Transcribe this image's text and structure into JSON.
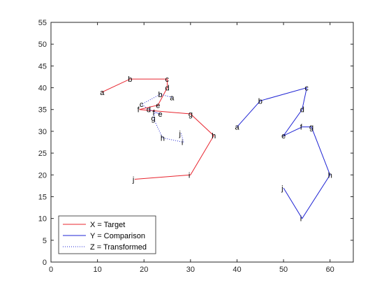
{
  "chart_data": {
    "type": "line",
    "xlim": [
      0,
      65
    ],
    "ylim": [
      0,
      55
    ],
    "xticks": [
      0,
      10,
      20,
      30,
      40,
      50,
      60
    ],
    "yticks": [
      0,
      5,
      10,
      15,
      20,
      25,
      30,
      35,
      40,
      45,
      50,
      55
    ],
    "grid": false,
    "legend_position": "bottom-left",
    "series": [
      {
        "name": "X = Target",
        "color": "#e8242e",
        "line_style": "solid",
        "points": [
          {
            "label": "a",
            "x": 11,
            "y": 39
          },
          {
            "label": "b",
            "x": 17,
            "y": 42
          },
          {
            "label": "c",
            "x": 25,
            "y": 42
          },
          {
            "label": "d",
            "x": 25,
            "y": 40
          },
          {
            "label": "e",
            "x": 23,
            "y": 36
          },
          {
            "label": "f",
            "x": 19,
            "y": 35
          },
          {
            "label": "g",
            "x": 30,
            "y": 34
          },
          {
            "label": "h",
            "x": 35,
            "y": 29
          },
          {
            "label": "i",
            "x": 30,
            "y": 20
          },
          {
            "label": "j",
            "x": 18,
            "y": 19
          }
        ]
      },
      {
        "name": "Y = Comparison",
        "color": "#1f24d4",
        "line_style": "solid",
        "points": [
          {
            "label": "a",
            "x": 40,
            "y": 31
          },
          {
            "label": "b",
            "x": 45,
            "y": 37
          },
          {
            "label": "c",
            "x": 55,
            "y": 40
          },
          {
            "label": "d",
            "x": 54,
            "y": 35
          },
          {
            "label": "e",
            "x": 50,
            "y": 29
          },
          {
            "label": "f",
            "x": 54,
            "y": 31
          },
          {
            "label": "g",
            "x": 56,
            "y": 31
          },
          {
            "label": "h",
            "x": 60,
            "y": 20
          },
          {
            "label": "i",
            "x": 54,
            "y": 10
          },
          {
            "label": "j",
            "x": 50,
            "y": 17
          }
        ]
      },
      {
        "name": "Z = Transformed",
        "color": "#1f24d4",
        "line_style": "dotted",
        "points": [
          {
            "label": "a",
            "x": 26,
            "y": 37.8
          },
          {
            "label": "b",
            "x": 23.5,
            "y": 38.5
          },
          {
            "label": "c",
            "x": 19.5,
            "y": 36.2
          },
          {
            "label": "d",
            "x": 21,
            "y": 35
          },
          {
            "label": "e",
            "x": 23.5,
            "y": 34
          },
          {
            "label": "f",
            "x": 22.3,
            "y": 34.3
          },
          {
            "label": "g",
            "x": 22,
            "y": 33
          },
          {
            "label": "h",
            "x": 24,
            "y": 28.5
          },
          {
            "label": "i",
            "x": 28.5,
            "y": 27.5
          },
          {
            "label": "j",
            "x": 28,
            "y": 29.5
          }
        ]
      }
    ]
  }
}
